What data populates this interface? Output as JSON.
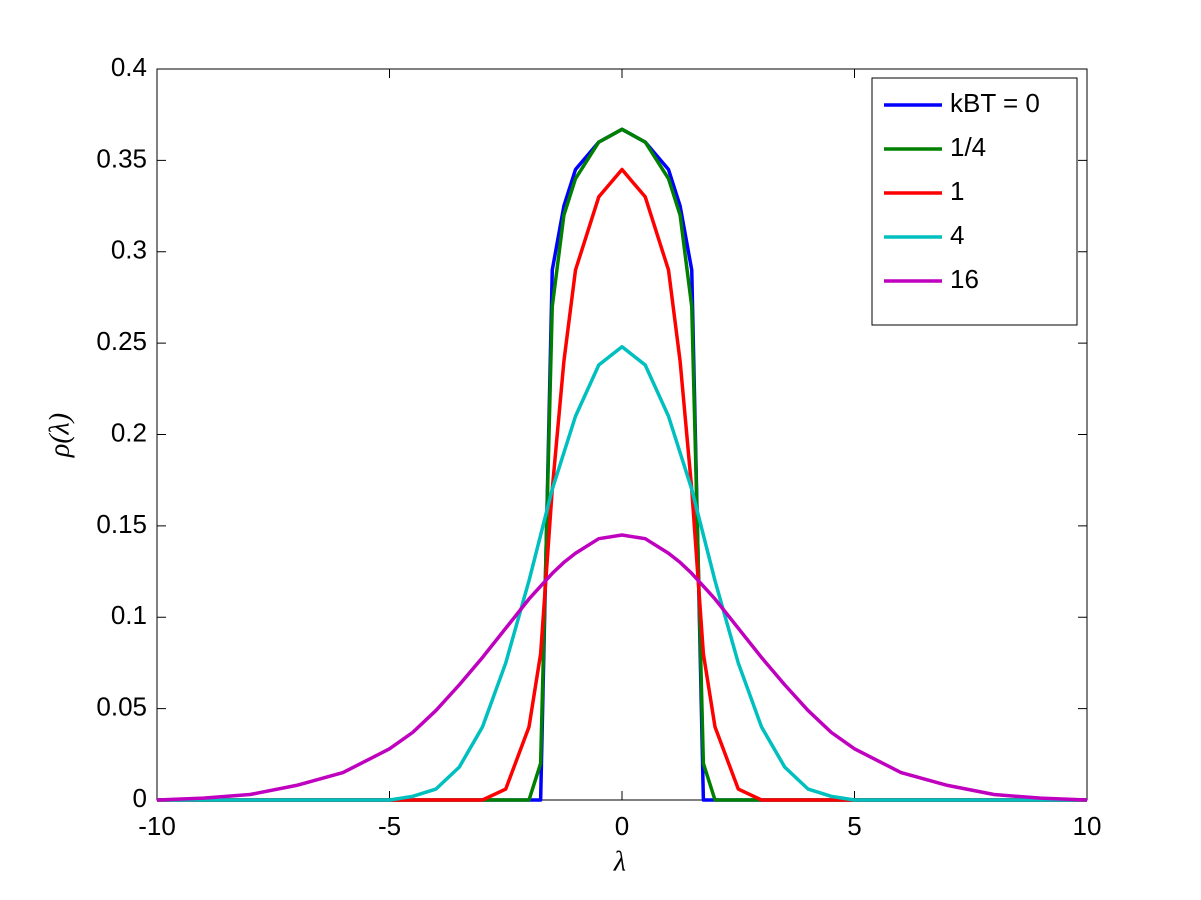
{
  "chart_data": {
    "type": "line",
    "xlabel": "λ",
    "ylabel": "ρ(λ)",
    "x": [
      -10,
      -9,
      -8,
      -7,
      -6,
      -5,
      -4.5,
      -4,
      -3.5,
      -3,
      -2.5,
      -2,
      -1.75,
      -1.5,
      -1.25,
      -1,
      -0.5,
      0,
      0.5,
      1,
      1.25,
      1.5,
      1.75,
      2,
      2.5,
      3,
      3.5,
      4,
      4.5,
      5,
      6,
      7,
      8,
      9,
      10
    ],
    "series": [
      {
        "name": "kBT = 0",
        "color": "#0000ff",
        "values": [
          0,
          0,
          0,
          0,
          0,
          0,
          0,
          0,
          0,
          0,
          0,
          0,
          0,
          0.29,
          0.325,
          0.345,
          0.36,
          0.367,
          0.36,
          0.345,
          0.325,
          0.29,
          0,
          0,
          0,
          0,
          0,
          0,
          0,
          0,
          0,
          0,
          0,
          0,
          0
        ]
      },
      {
        "name": "1/4",
        "color": "#008000",
        "values": [
          0,
          0,
          0,
          0,
          0,
          0,
          0,
          0,
          0,
          0,
          0,
          0,
          0.02,
          0.27,
          0.32,
          0.34,
          0.36,
          0.367,
          0.36,
          0.34,
          0.32,
          0.27,
          0.02,
          0,
          0,
          0,
          0,
          0,
          0,
          0,
          0,
          0,
          0,
          0,
          0
        ]
      },
      {
        "name": "1",
        "color": "#ff0000",
        "values": [
          0,
          0,
          0,
          0,
          0,
          0,
          0,
          0,
          0,
          0,
          0.006,
          0.04,
          0.08,
          0.17,
          0.24,
          0.29,
          0.33,
          0.345,
          0.33,
          0.29,
          0.24,
          0.17,
          0.08,
          0.04,
          0.006,
          0,
          0,
          0,
          0,
          0,
          0,
          0,
          0,
          0,
          0
        ]
      },
      {
        "name": "4",
        "color": "#00bfbf",
        "values": [
          0,
          0,
          0,
          0,
          0,
          0,
          0.002,
          0.006,
          0.018,
          0.04,
          0.075,
          0.12,
          0.145,
          0.17,
          0.19,
          0.21,
          0.238,
          0.248,
          0.238,
          0.21,
          0.19,
          0.17,
          0.145,
          0.12,
          0.075,
          0.04,
          0.018,
          0.006,
          0.002,
          0,
          0,
          0,
          0,
          0,
          0
        ]
      },
      {
        "name": "16",
        "color": "#bf00bf",
        "values": [
          0,
          0.001,
          0.003,
          0.008,
          0.015,
          0.028,
          0.037,
          0.049,
          0.063,
          0.078,
          0.094,
          0.11,
          0.117,
          0.124,
          0.13,
          0.135,
          0.143,
          0.145,
          0.143,
          0.135,
          0.13,
          0.124,
          0.117,
          0.11,
          0.094,
          0.078,
          0.063,
          0.049,
          0.037,
          0.028,
          0.015,
          0.008,
          0.003,
          0.001,
          0
        ]
      }
    ],
    "xlim": [
      -10,
      10
    ],
    "xticks": [
      -10,
      -5,
      0,
      5,
      10
    ],
    "ylim": [
      0,
      0.4
    ],
    "yticks": [
      0,
      0.05,
      0.1,
      0.15,
      0.2,
      0.25,
      0.3,
      0.35,
      0.4
    ],
    "grid": false,
    "legend": "northeast"
  }
}
